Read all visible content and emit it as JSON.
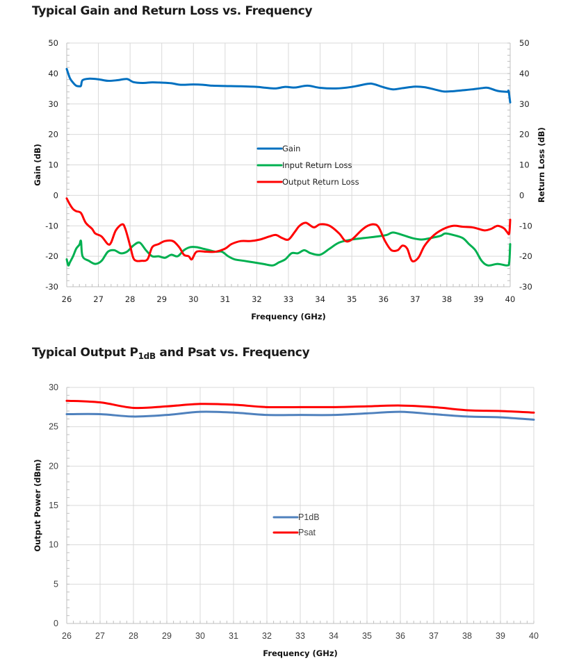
{
  "chart_data": [
    {
      "type": "line",
      "title": "Typical Gain and Return Loss vs. Frequency",
      "xlabel": "Frequency (GHz)",
      "ylabel": "Gain (dB)",
      "ylabel_right": "Return Loss (dB)",
      "xlim": [
        26,
        40
      ],
      "ylim": [
        -30,
        50
      ],
      "ylim_right": [
        -30,
        50
      ],
      "x_ticks": [
        26,
        27,
        28,
        29,
        30,
        31,
        32,
        33,
        34,
        35,
        36,
        37,
        38,
        39,
        40
      ],
      "y_ticks": [
        50,
        40,
        30,
        20,
        10,
        0,
        -10,
        -20,
        -30
      ],
      "grid": true,
      "legend_position": "center",
      "series": [
        {
          "name": "Gain",
          "color": "#0070C0",
          "x": [
            26,
            26.1,
            26.2,
            26.3,
            26.4,
            26.45,
            26.5,
            26.7,
            27,
            27.3,
            27.6,
            27.9,
            28.1,
            28.4,
            28.7,
            29,
            29.3,
            29.6,
            30,
            30.3,
            30.6,
            31,
            31.5,
            32,
            32.3,
            32.6,
            32.9,
            33.2,
            33.6,
            34,
            34.5,
            35,
            35.5,
            35.7,
            36,
            36.3,
            36.6,
            37,
            37.3,
            37.6,
            37.9,
            38.2,
            38.5,
            38.8,
            39.1,
            39.3,
            39.6,
            39.9,
            39.95,
            40
          ],
          "values": [
            41.5,
            38.5,
            37,
            36,
            35.8,
            36,
            37.8,
            38.3,
            38.1,
            37.6,
            37.8,
            38.2,
            37.2,
            36.9,
            37.1,
            37,
            36.8,
            36.3,
            36.4,
            36.3,
            36,
            35.9,
            35.8,
            35.6,
            35.3,
            35.1,
            35.6,
            35.4,
            36,
            35.3,
            35.1,
            35.6,
            36.6,
            36.5,
            35.5,
            34.8,
            35.2,
            35.7,
            35.5,
            34.8,
            34.1,
            34.2,
            34.5,
            34.8,
            35.2,
            35.3,
            34.3,
            34,
            34.2,
            30.5
          ]
        },
        {
          "name": "Input Return Loss",
          "color": "#00B050",
          "x": [
            26,
            26.05,
            26.1,
            26.2,
            26.3,
            26.4,
            26.45,
            26.5,
            26.7,
            26.9,
            27.1,
            27.3,
            27.5,
            27.7,
            27.9,
            28.1,
            28.3,
            28.5,
            28.7,
            28.9,
            29.1,
            29.3,
            29.5,
            29.7,
            29.9,
            30.1,
            30.3,
            30.5,
            30.7,
            30.9,
            31.1,
            31.3,
            31.6,
            31.9,
            32.2,
            32.5,
            32.7,
            32.9,
            33.1,
            33.3,
            33.5,
            33.7,
            34,
            34.3,
            34.6,
            35,
            35.4,
            35.8,
            36.1,
            36.3,
            36.6,
            36.9,
            37.2,
            37.5,
            37.8,
            37.95,
            38.2,
            38.5,
            38.7,
            38.9,
            39.1,
            39.3,
            39.6,
            39.9,
            39.97,
            40
          ],
          "values": [
            -21,
            -23,
            -22,
            -20,
            -17.5,
            -16.2,
            -15,
            -20,
            -21.5,
            -22.5,
            -21.5,
            -18.5,
            -18,
            -19,
            -18.5,
            -16.5,
            -15.5,
            -18,
            -20,
            -20,
            -20.5,
            -19.5,
            -20,
            -18,
            -17,
            -17,
            -17.5,
            -18,
            -18.5,
            -18.5,
            -20,
            -21,
            -21.5,
            -22,
            -22.5,
            -23,
            -22,
            -21,
            -19,
            -19,
            -18,
            -19,
            -19.5,
            -17.5,
            -15.5,
            -14.5,
            -14,
            -13.5,
            -13,
            -12.2,
            -13,
            -14,
            -14.5,
            -14,
            -13.3,
            -12.5,
            -13,
            -14,
            -16,
            -18,
            -21.5,
            -23,
            -22.5,
            -23,
            -22,
            -16
          ]
        },
        {
          "name": "Output Return Loss",
          "color": "#FF0000",
          "x": [
            26,
            26.1,
            26.2,
            26.3,
            26.45,
            26.6,
            26.8,
            26.9,
            27.1,
            27.3,
            27.4,
            27.55,
            27.75,
            27.85,
            28,
            28.1,
            28.2,
            28.35,
            28.55,
            28.7,
            28.9,
            29.1,
            29.35,
            29.55,
            29.7,
            29.85,
            29.95,
            30.1,
            30.4,
            30.7,
            31,
            31.2,
            31.5,
            31.8,
            32.1,
            32.4,
            32.6,
            32.8,
            33,
            33.2,
            33.35,
            33.55,
            33.8,
            34,
            34.3,
            34.6,
            34.8,
            35,
            35.3,
            35.5,
            35.7,
            35.85,
            36.05,
            36.25,
            36.45,
            36.6,
            36.75,
            36.9,
            37.1,
            37.3,
            37.6,
            37.9,
            38.2,
            38.5,
            38.8,
            39,
            39.2,
            39.4,
            39.6,
            39.8,
            39.9,
            39.97,
            40
          ],
          "values": [
            -1,
            -3,
            -4.5,
            -5.2,
            -5.8,
            -9,
            -11,
            -12.5,
            -13.5,
            -16,
            -15.5,
            -11.5,
            -9.5,
            -11,
            -16.5,
            -20.5,
            -21.5,
            -21.5,
            -21,
            -17,
            -16,
            -15,
            -15,
            -17,
            -19.5,
            -20,
            -21,
            -18.5,
            -18.5,
            -18.5,
            -17.5,
            -16,
            -15,
            -15,
            -14.5,
            -13.5,
            -13,
            -14,
            -14.5,
            -12,
            -10,
            -9,
            -10.5,
            -9.5,
            -10,
            -12.5,
            -15,
            -14.5,
            -11.5,
            -10,
            -9.5,
            -10.5,
            -15,
            -18,
            -18,
            -16.5,
            -17.5,
            -21.5,
            -20.5,
            -16.5,
            -13,
            -11,
            -10,
            -10.3,
            -10.5,
            -11,
            -11.5,
            -11,
            -10,
            -10.8,
            -12,
            -12.5,
            -8
          ]
        }
      ]
    },
    {
      "type": "line",
      "title": "Typical Output P1dB and Psat vs. Frequency",
      "xlabel": "Frequency (GHz)",
      "ylabel": "Output Power (dBm)",
      "xlim": [
        26,
        40
      ],
      "ylim": [
        0,
        30
      ],
      "x_ticks": [
        26,
        27,
        28,
        29,
        30,
        31,
        32,
        33,
        34,
        35,
        36,
        37,
        38,
        39,
        40
      ],
      "y_ticks": [
        30,
        25,
        20,
        15,
        10,
        5,
        0
      ],
      "grid": true,
      "legend_position": "center",
      "series": [
        {
          "name": "P1dB",
          "color": "#4F81BD",
          "x": [
            26,
            27,
            28,
            29,
            30,
            31,
            32,
            33,
            34,
            35,
            36,
            37,
            38,
            39,
            40
          ],
          "values": [
            26.6,
            26.6,
            26.3,
            26.5,
            26.9,
            26.8,
            26.5,
            26.5,
            26.5,
            26.7,
            26.9,
            26.6,
            26.3,
            26.2,
            25.9
          ]
        },
        {
          "name": "Psat",
          "color": "#FF0000",
          "x": [
            26,
            27,
            28,
            29,
            30,
            31,
            32,
            33,
            34,
            35,
            36,
            37,
            38,
            39,
            40
          ],
          "values": [
            28.3,
            28.1,
            27.4,
            27.6,
            27.9,
            27.8,
            27.5,
            27.5,
            27.5,
            27.6,
            27.7,
            27.5,
            27.1,
            27.0,
            26.8
          ]
        }
      ]
    }
  ],
  "titles": {
    "chart1": "Typical Gain and Return Loss vs. Frequency",
    "chart2_prefix": "Typical Output P",
    "chart2_sub": "1dB",
    "chart2_suffix": " and Psat vs. Frequency"
  }
}
